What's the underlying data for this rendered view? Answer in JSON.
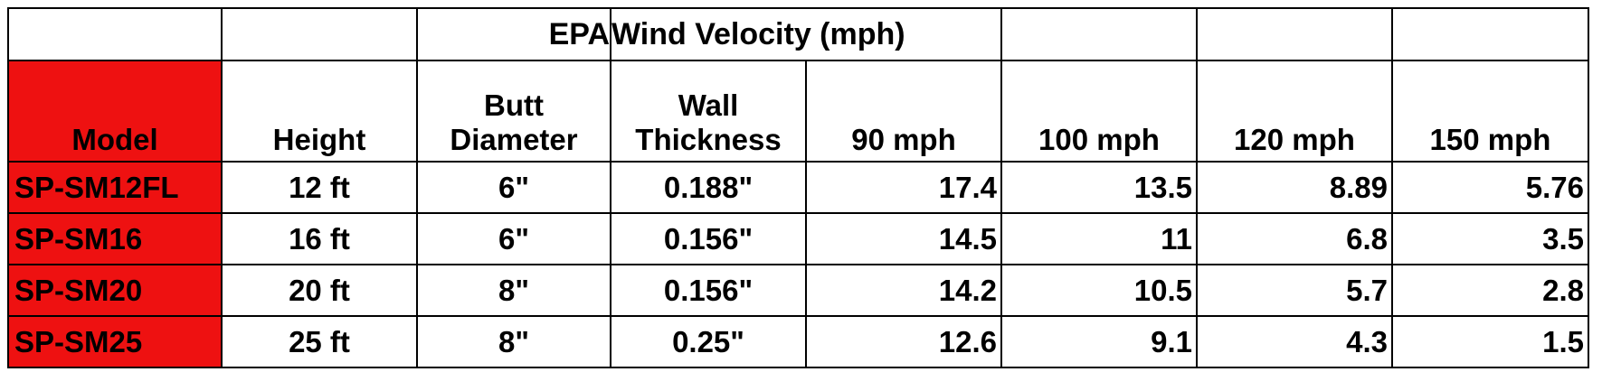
{
  "title": {
    "epa": "EPA",
    "wind_velocity": "Wind Velocity (mph)"
  },
  "columns": {
    "model": "Model",
    "height": "Height",
    "butt_diameter_line1": "Butt",
    "butt_diameter_line2": "Diameter",
    "wall_thickness_line1": "Wall",
    "wall_thickness_line2": "Thickness",
    "v90": "90 mph",
    "v100": "100 mph",
    "v120": "120 mph",
    "v150": "150 mph"
  },
  "rows": [
    {
      "model": "SP-SM12FL",
      "height": "12 ft",
      "butt_diameter": "6\"",
      "wall_thickness": "0.188\"",
      "v90": "17.4",
      "v100": "13.5",
      "v120": "8.89",
      "v150": "5.76"
    },
    {
      "model": "SP-SM16",
      "height": "16 ft",
      "butt_diameter": "6\"",
      "wall_thickness": "0.156\"",
      "v90": "14.5",
      "v100": "11",
      "v120": "6.8",
      "v150": "3.5"
    },
    {
      "model": "SP-SM20",
      "height": "20 ft",
      "butt_diameter": "8\"",
      "wall_thickness": "0.156\"",
      "v90": "14.2",
      "v100": "10.5",
      "v120": "5.7",
      "v150": "2.8"
    },
    {
      "model": "SP-SM25",
      "height": "25 ft",
      "butt_diameter": "8\"",
      "wall_thickness": "0.25\"",
      "v90": "12.6",
      "v100": "9.1",
      "v120": "4.3",
      "v150": "1.5"
    }
  ],
  "colors": {
    "accent_red": "#ee1111",
    "text": "#000000",
    "header_model_text": "#ffffff"
  }
}
